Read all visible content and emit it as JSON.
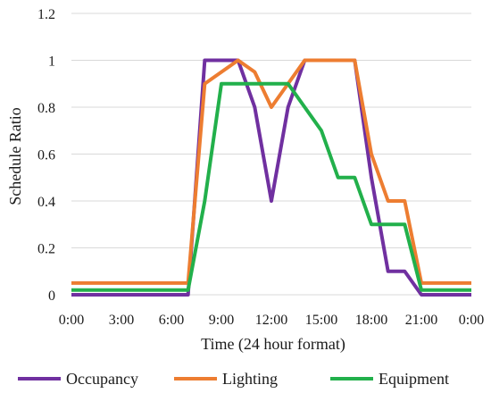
{
  "chart_data": {
    "type": "line",
    "xlabel": "Time (24 hour format)",
    "ylabel": "Schedule Ratio",
    "ylim": [
      0,
      1.2
    ],
    "yticks": [
      0,
      0.2,
      0.4,
      0.6,
      0.8,
      1,
      1.2
    ],
    "ytick_labels": [
      "0",
      "0.2",
      "0.4",
      "0.6",
      "0.8",
      "1",
      "1.2"
    ],
    "xlim": [
      0,
      24
    ],
    "xticks": [
      0,
      3,
      6,
      9,
      12,
      15,
      18,
      21,
      24
    ],
    "xtick_labels": [
      "0:00",
      "3:00",
      "6:00",
      "9:00",
      "12:00",
      "15:00",
      "18:00",
      "21:00",
      "0:00"
    ],
    "grid": true,
    "legend_position": "bottom",
    "series": [
      {
        "name": "Occupancy",
        "color": "#7030a0",
        "x": [
          0,
          1,
          2,
          3,
          4,
          5,
          6,
          7,
          8,
          9,
          10,
          11,
          12,
          13,
          14,
          15,
          16,
          17,
          18,
          19,
          20,
          21,
          22,
          23,
          24
        ],
        "y": [
          0,
          0,
          0,
          0,
          0,
          0,
          0,
          0,
          1,
          1,
          1,
          0.8,
          0.4,
          0.8,
          1,
          1,
          1,
          1,
          0.5,
          0.1,
          0.1,
          0,
          0,
          0,
          0
        ]
      },
      {
        "name": "Lighting",
        "color": "#ed7d31",
        "x": [
          0,
          1,
          2,
          3,
          4,
          5,
          6,
          7,
          8,
          9,
          10,
          11,
          12,
          13,
          14,
          15,
          16,
          17,
          18,
          19,
          20,
          21,
          22,
          23,
          24
        ],
        "y": [
          0.05,
          0.05,
          0.05,
          0.05,
          0.05,
          0.05,
          0.05,
          0.05,
          0.9,
          0.95,
          1,
          0.95,
          0.8,
          0.9,
          1,
          1,
          1,
          1,
          0.6,
          0.4,
          0.4,
          0.05,
          0.05,
          0.05,
          0.05
        ]
      },
      {
        "name": "Equipment",
        "color": "#22b04b",
        "x": [
          0,
          1,
          2,
          3,
          4,
          5,
          6,
          7,
          8,
          9,
          10,
          11,
          12,
          13,
          14,
          15,
          16,
          17,
          18,
          19,
          20,
          21,
          22,
          23,
          24
        ],
        "y": [
          0.02,
          0.02,
          0.02,
          0.02,
          0.02,
          0.02,
          0.02,
          0.02,
          0.4,
          0.9,
          0.9,
          0.9,
          0.9,
          0.9,
          0.8,
          0.7,
          0.5,
          0.5,
          0.3,
          0.3,
          0.3,
          0.02,
          0.02,
          0.02,
          0.02
        ]
      }
    ]
  }
}
